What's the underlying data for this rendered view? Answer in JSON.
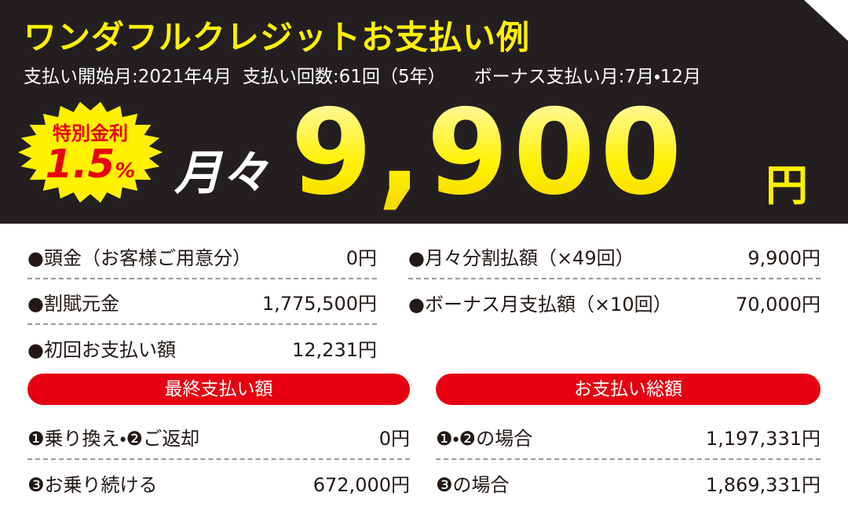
{
  "header": {
    "title": "ワンダフルクレジットお支払い例",
    "subtitle": [
      "支払い開始月:2021年4月",
      "支払い回数:61回（5年）",
      "ボーナス支払い月:7月・12月"
    ]
  },
  "badge": {
    "label": "特別金利",
    "rate": "1.5",
    "unit": "%"
  },
  "monthly": {
    "label": "月々",
    "amount": "9,900",
    "unit": "円"
  },
  "details": {
    "left": [
      {
        "label": "●頭金（お客様ご用意分）",
        "value": "0円"
      },
      {
        "label": "●割賦元金",
        "value": "1,775,500円"
      },
      {
        "label": "●初回お支払い額",
        "value": "12,231円"
      }
    ],
    "right": [
      {
        "label": "●月々分割払額（×49回）",
        "value": "9,900円"
      },
      {
        "label": "●ボーナス月支払額（×10回）",
        "value": "70,000円"
      }
    ]
  },
  "sections": [
    {
      "title": "最終支払い額",
      "rows": [
        {
          "label": "❶乗り換え・❷ご返却",
          "value": "0円"
        },
        {
          "label": "❸お乗り続ける",
          "value": "672,000円"
        }
      ]
    },
    {
      "title": "お支払い総額",
      "rows": [
        {
          "label": "❶・❷の場合",
          "value": "1,197,331円"
        },
        {
          "label": "❸の場合",
          "value": "1,869,331円"
        }
      ]
    }
  ]
}
